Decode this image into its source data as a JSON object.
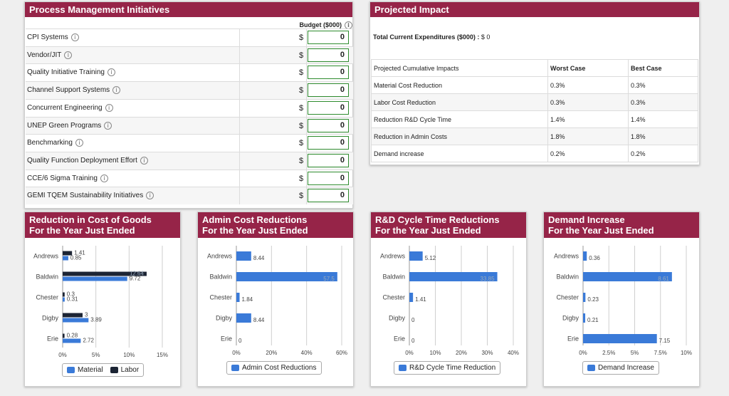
{
  "initiatives": {
    "title": "Process Management Initiatives",
    "budget_header": "Budget ($000)",
    "currency_symbol": "$",
    "rows": [
      {
        "label": "CPI Systems",
        "value": "0"
      },
      {
        "label": "Vendor/JIT",
        "value": "0"
      },
      {
        "label": "Quality Initiative Training",
        "value": "0"
      },
      {
        "label": "Channel Support Systems",
        "value": "0"
      },
      {
        "label": "Concurrent Engineering",
        "value": "0"
      },
      {
        "label": "UNEP Green Programs",
        "value": "0"
      },
      {
        "label": "Benchmarking",
        "value": "0"
      },
      {
        "label": "Quality Function Deployment Effort",
        "value": "0"
      },
      {
        "label": "CCE/6 Sigma Training",
        "value": "0"
      },
      {
        "label": "GEMI TQEM Sustainability Initiatives",
        "value": "0"
      }
    ]
  },
  "impact": {
    "title": "Projected Impact",
    "total_label": "Total Current Expenditures ($000) :",
    "total_value": "$ 0",
    "headers": [
      "Projected Cumulative Impacts",
      "Worst Case",
      "Best Case"
    ],
    "rows": [
      {
        "label": "Material Cost Reduction",
        "worst": "0.3%",
        "best": "0.3%"
      },
      {
        "label": "Labor Cost Reduction",
        "worst": "0.3%",
        "best": "0.3%"
      },
      {
        "label": "Reduction R&D Cycle Time",
        "worst": "1.4%",
        "best": "1.4%"
      },
      {
        "label": "Reduction in Admin Costs",
        "worst": "1.8%",
        "best": "1.8%"
      },
      {
        "label": "Demand increase",
        "worst": "0.2%",
        "best": "0.2%"
      }
    ]
  },
  "colors": {
    "blue": "#3a7ad8",
    "navy": "#1c2434",
    "header": "#962448"
  },
  "chart_data": [
    {
      "type": "bar",
      "title": "Reduction in Cost of Goods",
      "subtitle": "For the Year Just Ended",
      "categories": [
        "Andrews",
        "Baldwin",
        "Chester",
        "Digby",
        "Erie"
      ],
      "series": [
        {
          "name": "Labor",
          "values": [
            1.41,
            12.64,
            0.3,
            3,
            0.28
          ],
          "labels": [
            "1.41",
            "12.64",
            "0.3",
            "3",
            "0.28"
          ]
        },
        {
          "name": "Material",
          "values": [
            0.85,
            9.72,
            0.31,
            3.89,
            2.72
          ],
          "labels": [
            "0.85",
            "9.72",
            "0.31",
            "3.89",
            "2.72"
          ]
        }
      ],
      "ticks": [
        "0%",
        "5%",
        "10%",
        "15%"
      ],
      "xlim": [
        0,
        15
      ],
      "legend": [
        "Material",
        "Labor"
      ]
    },
    {
      "type": "bar",
      "title": "Admin Cost Reductions",
      "subtitle": "For the Year Just Ended",
      "categories": [
        "Andrews",
        "Baldwin",
        "Chester",
        "Digby",
        "Erie"
      ],
      "series": [
        {
          "name": "Admin Cost Reductions",
          "values": [
            8.44,
            57.5,
            1.84,
            8.44,
            0
          ],
          "labels": [
            "8.44",
            "57.5",
            "1.84",
            "8.44",
            "0"
          ]
        }
      ],
      "ticks": [
        "0%",
        "20%",
        "40%",
        "60%"
      ],
      "xlim": [
        0,
        60
      ],
      "legend": [
        "Admin Cost Reductions"
      ]
    },
    {
      "type": "bar",
      "title": "R&D Cycle Time Reductions",
      "subtitle": "For the Year Just Ended",
      "categories": [
        "Andrews",
        "Baldwin",
        "Chester",
        "Digby",
        "Erie"
      ],
      "series": [
        {
          "name": "R&D Cycle Time Reduction",
          "values": [
            5.12,
            33.85,
            1.41,
            0,
            0
          ],
          "labels": [
            "5.12",
            "33.85",
            "1.41",
            "0",
            "0"
          ]
        }
      ],
      "ticks": [
        "0%",
        "10%",
        "20%",
        "30%",
        "40%"
      ],
      "xlim": [
        0,
        40
      ],
      "legend": [
        "R&D Cycle Time Reduction"
      ]
    },
    {
      "type": "bar",
      "title": "Demand Increase",
      "subtitle": "For the Year Just Ended",
      "categories": [
        "Andrews",
        "Baldwin",
        "Chester",
        "Digby",
        "Erie"
      ],
      "series": [
        {
          "name": "Demand Increase",
          "values": [
            0.36,
            8.61,
            0.23,
            0.21,
            7.15
          ],
          "labels": [
            "0.36",
            "8.61",
            "0.23",
            "0.21",
            "7.15"
          ]
        }
      ],
      "ticks": [
        "0%",
        "2.5%",
        "5%",
        "7.5%",
        "10%"
      ],
      "xlim": [
        0,
        10
      ],
      "legend": [
        "Demand Increase"
      ]
    }
  ]
}
